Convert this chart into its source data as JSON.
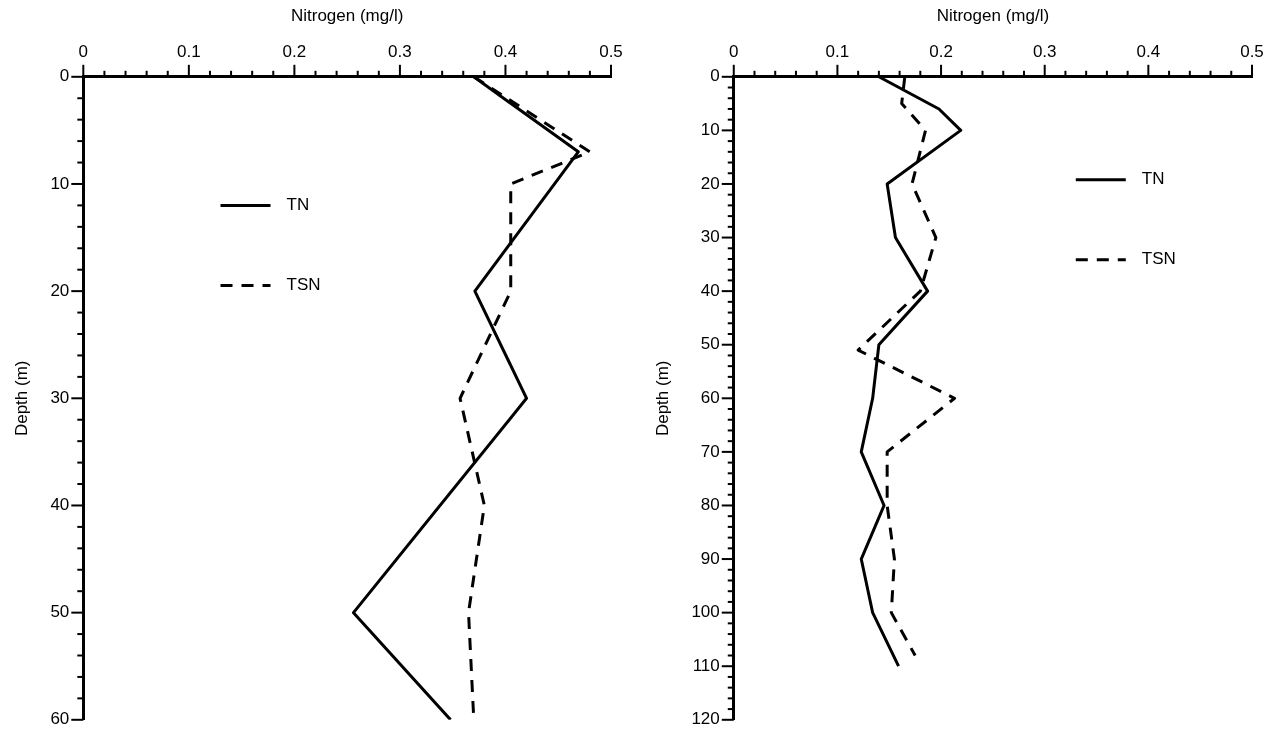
{
  "chart_data": [
    {
      "type": "line",
      "xlabel": "Nitrogen (mg/l)",
      "ylabel": "Depth (m)",
      "legend": "top left",
      "grid": false,
      "xlim": [
        0,
        0.5
      ],
      "ylim": [
        60,
        0
      ],
      "xticks": [
        0,
        {
          "value": 0.02,
          "label": null
        },
        {
          "value": 0.04,
          "label": null
        },
        {
          "value": 0.06,
          "label": null
        },
        {
          "value": 0.08,
          "label": null
        },
        0.1,
        {
          "value": 0.12,
          "label": null
        },
        {
          "value": 0.14,
          "label": null
        },
        {
          "value": 0.16,
          "label": null
        },
        {
          "value": 0.18,
          "label": null
        },
        0.2,
        {
          "value": 0.22,
          "label": null
        },
        {
          "value": 0.24,
          "label": null
        },
        {
          "value": 0.26,
          "label": null
        },
        {
          "value": 0.28,
          "label": null
        },
        0.3,
        {
          "value": 0.32,
          "label": null
        },
        {
          "value": 0.34,
          "label": null
        },
        {
          "value": 0.36,
          "label": null
        },
        {
          "value": 0.38,
          "label": null
        },
        0.4,
        {
          "value": 0.42,
          "label": null
        },
        {
          "value": 0.44,
          "label": null
        },
        {
          "value": 0.46,
          "label": null
        },
        {
          "value": 0.48,
          "label": null
        },
        0.5
      ],
      "yticks": [
        0,
        {
          "value": 2,
          "label": null
        },
        {
          "value": 4,
          "label": null
        },
        {
          "value": 6,
          "label": null
        },
        {
          "value": 8,
          "label": null
        },
        10,
        {
          "value": 12,
          "label": null
        },
        {
          "value": 14,
          "label": null
        },
        {
          "value": 16,
          "label": null
        },
        {
          "value": 18,
          "label": null
        },
        20,
        {
          "value": 22,
          "label": null
        },
        {
          "value": 24,
          "label": null
        },
        {
          "value": 26,
          "label": null
        },
        {
          "value": 28,
          "label": null
        },
        30,
        {
          "value": 32,
          "label": null
        },
        {
          "value": 34,
          "label": null
        },
        {
          "value": 36,
          "label": null
        },
        {
          "value": 38,
          "label": null
        },
        40,
        {
          "value": 42,
          "label": null
        },
        {
          "value": 44,
          "label": null
        },
        {
          "value": 46,
          "label": null
        },
        {
          "value": 48,
          "label": null
        },
        50,
        {
          "value": 52,
          "label": null
        },
        {
          "value": 54,
          "label": null
        },
        {
          "value": 56,
          "label": null
        },
        {
          "value": 58,
          "label": null
        },
        60
      ],
      "series": [
        {
          "name": "TN",
          "color": "#000000",
          "line_style": "solid",
          "x": [
            0.37,
            0.469,
            0.371,
            0.42,
            0.256,
            0.348
          ],
          "values": [
            0,
            7,
            20,
            30,
            50,
            60
          ]
        },
        {
          "name": "TSN",
          "color": "#000000",
          "line_style": "dashed",
          "x": [
            0.37,
            0.48,
            0.405,
            0.405,
            0.357,
            0.38,
            0.365,
            0.37
          ],
          "values": [
            0,
            7,
            10,
            20,
            30,
            40,
            50,
            60
          ]
        }
      ]
    },
    {
      "type": "line",
      "xlabel": "Nitrogen (mg/l)",
      "ylabel": "Depth (m)",
      "legend": "top right",
      "grid": false,
      "xlim": [
        0,
        0.5
      ],
      "ylim": [
        120,
        0
      ],
      "xticks": [
        0,
        {
          "value": 0.02,
          "label": null
        },
        {
          "value": 0.04,
          "label": null
        },
        {
          "value": 0.06,
          "label": null
        },
        {
          "value": 0.08,
          "label": null
        },
        0.1,
        {
          "value": 0.12,
          "label": null
        },
        {
          "value": 0.14,
          "label": null
        },
        {
          "value": 0.16,
          "label": null
        },
        {
          "value": 0.18,
          "label": null
        },
        0.2,
        {
          "value": 0.22,
          "label": null
        },
        {
          "value": 0.24,
          "label": null
        },
        {
          "value": 0.26,
          "label": null
        },
        {
          "value": 0.28,
          "label": null
        },
        0.3,
        {
          "value": 0.32,
          "label": null
        },
        {
          "value": 0.34,
          "label": null
        },
        {
          "value": 0.36,
          "label": null
        },
        {
          "value": 0.38,
          "label": null
        },
        0.4,
        {
          "value": 0.42,
          "label": null
        },
        {
          "value": 0.44,
          "label": null
        },
        {
          "value": 0.46,
          "label": null
        },
        {
          "value": 0.48,
          "label": null
        },
        0.5
      ],
      "yticks": [
        0,
        {
          "value": 2,
          "label": null
        },
        {
          "value": 4,
          "label": null
        },
        {
          "value": 6,
          "label": null
        },
        {
          "value": 8,
          "label": null
        },
        10,
        {
          "value": 12,
          "label": null
        },
        {
          "value": 14,
          "label": null
        },
        {
          "value": 16,
          "label": null
        },
        {
          "value": 18,
          "label": null
        },
        20,
        {
          "value": 22,
          "label": null
        },
        {
          "value": 24,
          "label": null
        },
        {
          "value": 26,
          "label": null
        },
        {
          "value": 28,
          "label": null
        },
        30,
        {
          "value": 32,
          "label": null
        },
        {
          "value": 34,
          "label": null
        },
        {
          "value": 36,
          "label": null
        },
        {
          "value": 38,
          "label": null
        },
        40,
        {
          "value": 42,
          "label": null
        },
        {
          "value": 44,
          "label": null
        },
        {
          "value": 46,
          "label": null
        },
        {
          "value": 48,
          "label": null
        },
        50,
        {
          "value": 52,
          "label": null
        },
        {
          "value": 54,
          "label": null
        },
        {
          "value": 56,
          "label": null
        },
        {
          "value": 58,
          "label": null
        },
        60,
        {
          "value": 62,
          "label": null
        },
        {
          "value": 64,
          "label": null
        },
        {
          "value": 66,
          "label": null
        },
        {
          "value": 68,
          "label": null
        },
        70,
        {
          "value": 72,
          "label": null
        },
        {
          "value": 74,
          "label": null
        },
        {
          "value": 76,
          "label": null
        },
        {
          "value": 78,
          "label": null
        },
        80,
        {
          "value": 82,
          "label": null
        },
        {
          "value": 84,
          "label": null
        },
        {
          "value": 86,
          "label": null
        },
        {
          "value": 88,
          "label": null
        },
        90,
        {
          "value": 92,
          "label": null
        },
        {
          "value": 94,
          "label": null
        },
        {
          "value": 96,
          "label": null
        },
        {
          "value": 98,
          "label": null
        },
        100,
        {
          "value": 102,
          "label": null
        },
        {
          "value": 104,
          "label": null
        },
        {
          "value": 106,
          "label": null
        },
        {
          "value": 108,
          "label": null
        },
        110,
        {
          "value": 112,
          "label": null
        },
        {
          "value": 114,
          "label": null
        },
        {
          "value": 116,
          "label": null
        },
        {
          "value": 118,
          "label": null
        },
        120
      ],
      "series": [
        {
          "name": "TN",
          "color": "#000000",
          "line_style": "solid",
          "x": [
            0.14,
            0.198,
            0.219,
            0.148,
            0.156,
            0.187,
            0.14,
            0.134,
            0.123,
            0.145,
            0.123,
            0.134,
            0.159
          ],
          "values": [
            0,
            6,
            10,
            20,
            30,
            40,
            50,
            60,
            70,
            80,
            90,
            100,
            110
          ]
        },
        {
          "name": "TSN",
          "color": "#000000",
          "line_style": "dashed",
          "x": [
            0.165,
            0.162,
            0.185,
            0.172,
            0.195,
            0.18,
            0.12,
            0.213,
            0.148,
            0.148,
            0.155,
            0.152,
            0.175
          ],
          "values": [
            0,
            5,
            10,
            20,
            30,
            40,
            51,
            60,
            70,
            80,
            90,
            100,
            108
          ]
        }
      ]
    }
  ]
}
